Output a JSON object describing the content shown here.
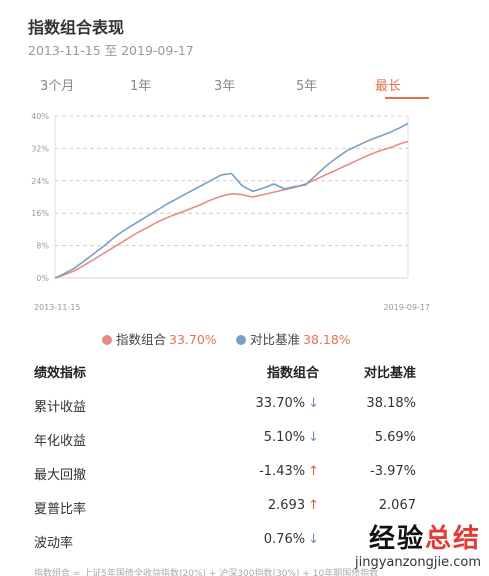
{
  "header": {
    "title": "指数组合表现",
    "date_range": "2013-11-15 至 2019-09-17"
  },
  "tabs": [
    {
      "label": "3个月",
      "active": false
    },
    {
      "label": "1年",
      "active": false
    },
    {
      "label": "3年",
      "active": false
    },
    {
      "label": "5年",
      "active": false
    },
    {
      "label": "最长",
      "active": true
    }
  ],
  "colors": {
    "accent": "#e0744f",
    "portfolio": "#e88c83",
    "benchmark": "#7a9fc6",
    "up": "#e05a4a",
    "down": "#6a8fb8"
  },
  "chart_data": {
    "type": "line",
    "x_start_label": "2013-11-15",
    "x_end_label": "2019-09-17",
    "y_ticks": [
      "0%",
      "8%",
      "16%",
      "24%",
      "32%",
      "40%"
    ],
    "ylim": [
      0,
      40
    ],
    "grid": true,
    "x": [
      0.0,
      0.02,
      0.05,
      0.08,
      0.11,
      0.14,
      0.17,
      0.2,
      0.23,
      0.26,
      0.29,
      0.32,
      0.35,
      0.38,
      0.41,
      0.44,
      0.47,
      0.5,
      0.53,
      0.56,
      0.59,
      0.62,
      0.65,
      0.68,
      0.71,
      0.74,
      0.77,
      0.8,
      0.83,
      0.86,
      0.89,
      0.92,
      0.95,
      0.98,
      1.0
    ],
    "series": [
      {
        "name": "指数组合",
        "color": "#e88c83",
        "values": [
          0.0,
          0.6,
          1.6,
          3.0,
          4.6,
          6.2,
          7.8,
          9.4,
          11.0,
          12.4,
          13.8,
          15.0,
          16.0,
          17.0,
          18.0,
          19.2,
          20.2,
          20.8,
          20.6,
          20.0,
          20.6,
          21.2,
          21.8,
          22.4,
          23.2,
          24.4,
          25.6,
          26.8,
          28.0,
          29.2,
          30.4,
          31.4,
          32.2,
          33.2,
          33.7
        ]
      },
      {
        "name": "对比基准",
        "color": "#7a9fc6",
        "values": [
          0.0,
          0.8,
          2.2,
          4.0,
          6.0,
          8.0,
          10.2,
          12.0,
          13.6,
          15.2,
          16.8,
          18.4,
          19.8,
          21.2,
          22.6,
          24.0,
          25.4,
          25.8,
          22.8,
          21.4,
          22.2,
          23.2,
          22.0,
          22.6,
          23.0,
          25.4,
          27.8,
          29.8,
          31.6,
          32.8,
          34.0,
          35.0,
          36.0,
          37.2,
          38.2
        ]
      }
    ]
  },
  "legend": [
    {
      "name": "指数组合",
      "value": "33.70%",
      "color": "#e88c83"
    },
    {
      "name": "对比基准",
      "value": "38.18%",
      "color": "#7a9fc6"
    }
  ],
  "table": {
    "headers": [
      "绩效指标",
      "指数组合",
      "对比基准"
    ],
    "rows": [
      {
        "label": "累计收益",
        "portfolio": "33.70%",
        "arrow": "↓",
        "arrow_dir": "down",
        "benchmark": "38.18%"
      },
      {
        "label": "年化收益",
        "portfolio": "5.10%",
        "arrow": "↓",
        "arrow_dir": "down",
        "benchmark": "5.69%"
      },
      {
        "label": "最大回撤",
        "portfolio": "-1.43%",
        "arrow": "↑",
        "arrow_dir": "up",
        "benchmark": "-3.97%"
      },
      {
        "label": "夏普比率",
        "portfolio": "2.693",
        "arrow": "↑",
        "arrow_dir": "up",
        "benchmark": "2.067"
      },
      {
        "label": "波动率",
        "portfolio": "0.76%",
        "arrow": "↓",
        "arrow_dir": "down",
        "benchmark": ""
      }
    ]
  },
  "footnote": "指数组合 = 上证5年国债全收益指数(20%) + 沪深300指数(30%) + 10年期国债指数",
  "watermark": {
    "part1": "经验",
    "part2": "总结",
    "url": "jingyanzongjie.com"
  }
}
